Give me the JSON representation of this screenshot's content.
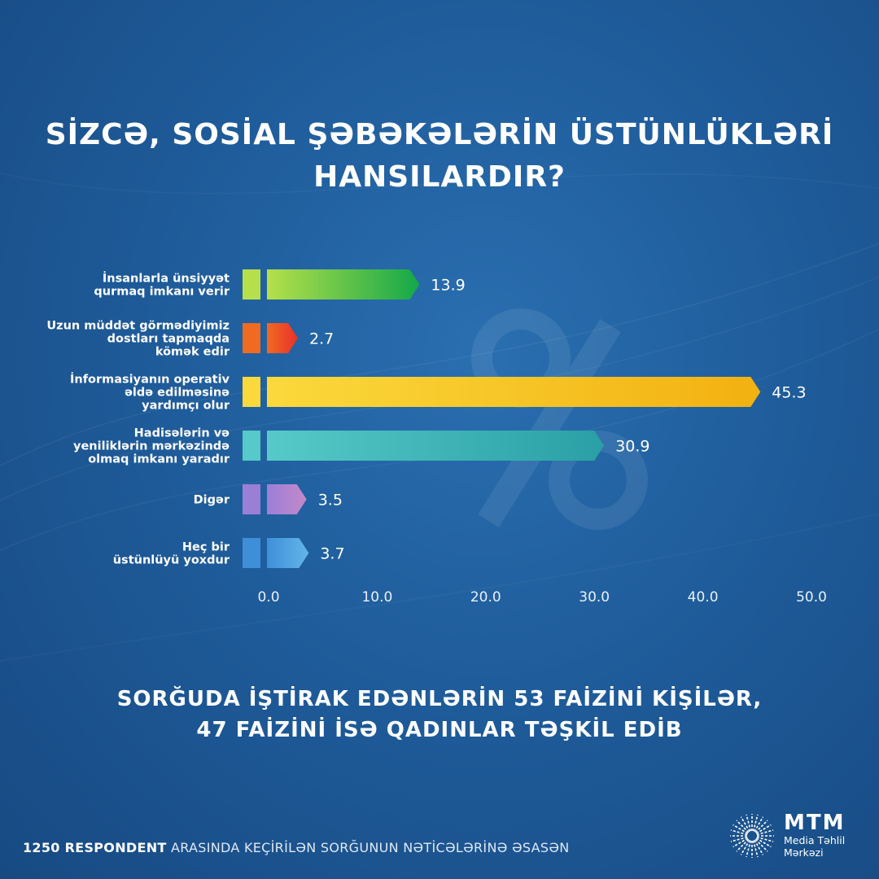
{
  "title": {
    "line1": "SİZCƏ, SOSİAL ŞƏBƏKƏLƏRİN ÜSTÜNLÜKLƏRİ",
    "line2": "HANSILARDIR?"
  },
  "chart_data": {
    "type": "bar",
    "orientation": "horizontal",
    "categories": [
      [
        "İnsanlarla ünsiyyət",
        "qurmaq imkanı verir"
      ],
      [
        "Uzun müddət görmədiyimiz",
        "dostları tapmaqda",
        "kömək edir"
      ],
      [
        "İnformasiyanın operativ",
        "əldə edilməsinə",
        "yardımçı olur"
      ],
      [
        "Hadisələrin və",
        "yeniliklərin mərkəzində",
        "olmaq imkanı yaradır"
      ],
      [
        "Digər"
      ],
      [
        "Heç bir",
        "üstünlüyü yoxdur"
      ]
    ],
    "values": [
      13.9,
      2.7,
      45.3,
      30.9,
      3.5,
      3.7
    ],
    "value_labels": [
      "13.9",
      "2.7",
      "45.3",
      "30.9",
      "3.5",
      "3.7"
    ],
    "bar_colors": [
      [
        "#b6e04a",
        "#13a84a"
      ],
      [
        "#f06a22",
        "#e8312a"
      ],
      [
        "#fbd93c",
        "#f2b110"
      ],
      [
        "#56c9c8",
        "#2a9fa5"
      ],
      [
        "#9b7fd6",
        "#c389c9"
      ],
      [
        "#3f8fd8",
        "#62b6e8"
      ]
    ],
    "xlim": [
      0,
      50
    ],
    "xticks": [
      "0.0",
      "10.0",
      "20.0",
      "30.0",
      "40.0",
      "50.0"
    ],
    "grid": false,
    "legend": "none"
  },
  "subtitle": {
    "line1": "SORĞUDA İŞTİRAK EDƏNLƏRİN 53 FAİZİNİ KİŞİLƏR,",
    "line2": "47 FAİZİNİ İSƏ QADINLAR TƏŞKİL EDİB"
  },
  "footer": {
    "bold": "1250 RESPONDENT",
    "rest": "ARASINDA KEÇİRİLƏN SORĞUNUN NƏTİCƏLƏRİNƏ ƏSASƏN"
  },
  "logo": {
    "abbr": "MTM",
    "name_line1": "Media Təhlil",
    "name_line2": "Mərkəzi"
  },
  "background_color": "#1f5c9b"
}
